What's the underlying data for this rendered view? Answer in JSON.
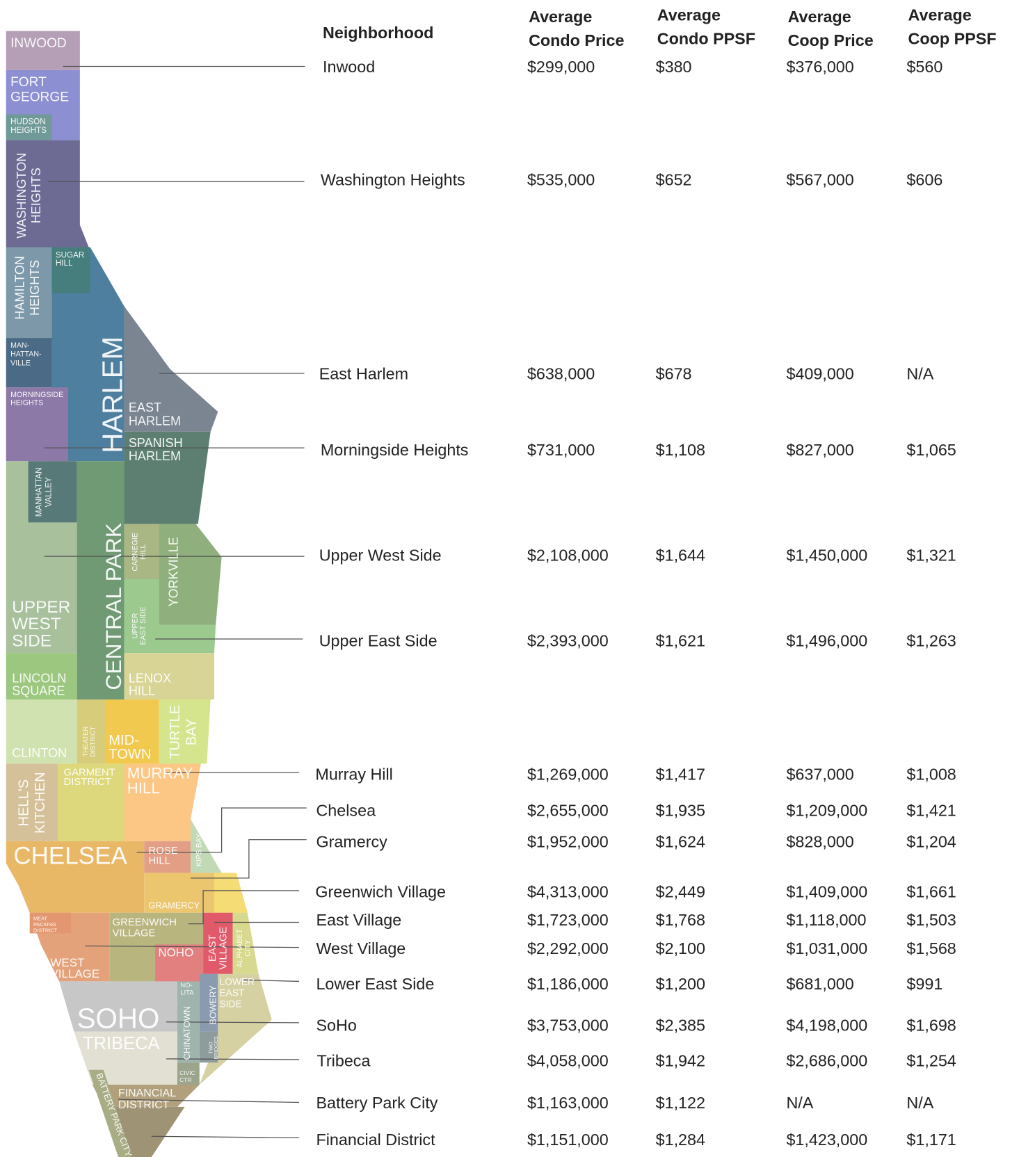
{
  "table": {
    "headers": [
      [
        "Neighborhood"
      ],
      [
        "Average",
        "Condo Price"
      ],
      [
        "Average",
        "Condo PPSF"
      ],
      [
        "Average",
        "Coop Price"
      ],
      [
        "Average",
        "Coop PPSF"
      ]
    ],
    "rows": [
      [
        "Inwood",
        "$299,000",
        "$380",
        "$376,000",
        "$560"
      ],
      [
        "Washington Heights",
        "$535,000",
        "$652",
        "$567,000",
        "$606"
      ],
      [
        "East Harlem",
        "$638,000",
        "$678",
        "$409,000",
        "N/A"
      ],
      [
        "Morningside Heights",
        "$731,000",
        "$1,108",
        "$827,000",
        "$1,065"
      ],
      [
        "Upper West Side",
        "$2,108,000",
        "$1,644",
        "$1,450,000",
        "$1,321"
      ],
      [
        "Upper East Side",
        "$2,393,000",
        "$1,621",
        "$1,496,000",
        "$1,263"
      ],
      [
        "Murray Hill",
        "$1,269,000",
        "$1,417",
        "$637,000",
        "$1,008"
      ],
      [
        "Chelsea",
        "$2,655,000",
        "$1,935",
        "$1,209,000",
        "$1,421"
      ],
      [
        "Gramercy",
        "$1,952,000",
        "$1,624",
        "$828,000",
        "$1,204"
      ],
      [
        "Greenwich Village",
        "$4,313,000",
        "$2,449",
        "$1,409,000",
        "$1,661"
      ],
      [
        "East Village",
        "$1,723,000",
        "$1,768",
        "$1,118,000",
        "$1,503"
      ],
      [
        "West Village",
        "$2,292,000",
        "$2,100",
        "$1,031,000",
        "$1,568"
      ],
      [
        "Lower East Side",
        "$1,186,000",
        "$1,200",
        "$681,000",
        "$991"
      ],
      [
        "SoHo",
        "$3,753,000",
        "$2,385",
        "$4,198,000",
        "$1,698"
      ],
      [
        "Tribeca",
        "$4,058,000",
        "$1,942",
        "$2,686,000",
        "$1,254"
      ],
      [
        "Battery Park City",
        "$1,163,000",
        "$1,122",
        "N/A",
        "N/A"
      ],
      [
        "Financial District",
        "$1,151,000",
        "$1,284",
        "$1,423,000",
        "$1,171"
      ]
    ]
  },
  "map": {
    "labels": [
      [
        "INWOOD"
      ],
      [
        "FORT",
        "GEORGE"
      ],
      [
        "HUDSON",
        "HEIGHTS"
      ],
      [
        "WASHINGTON",
        "HEIGHTS"
      ],
      [
        "SUGAR",
        "HILL"
      ],
      [
        "HAMILTON",
        "HEIGHTS"
      ],
      [
        "MAN-",
        "HATTAN-",
        "VILLE"
      ],
      [
        "MORNINGSIDE",
        "HEIGHTS"
      ],
      [
        "HARLEM"
      ],
      [
        "EAST",
        "HARLEM"
      ],
      [
        "SPANISH",
        "HARLEM"
      ],
      [
        "MANHATTAN",
        "VALLEY"
      ],
      [
        "CENTRAL PARK"
      ],
      [
        "CARNEGIE",
        "HILL"
      ],
      [
        "YORKVILLE"
      ],
      [
        "UPPER",
        "WEST",
        "SIDE"
      ],
      [
        "UPPER",
        "EAST SIDE"
      ],
      [
        "LINCOLN",
        "SQUARE"
      ],
      [
        "LENOX",
        "HILL"
      ],
      [
        "CLINTON"
      ],
      [
        "THEATER",
        "DISTRICT"
      ],
      [
        "MID-",
        "TOWN"
      ],
      [
        "TURTLE",
        "BAY"
      ],
      [
        "HELL'S",
        "KITCHEN"
      ],
      [
        "GARMENT",
        "DISTRICT"
      ],
      [
        "MURRAY",
        "HILL"
      ],
      [
        "CHELSEA"
      ],
      [
        "ROSE",
        "HILL"
      ],
      [
        "KIPS BAY"
      ],
      [
        "GRAMERCY"
      ],
      [
        "MEAT",
        "PACKING",
        "DISTRICT"
      ],
      [
        "GREENWICH",
        "VILLAGE"
      ],
      [
        "WEST",
        "VILLAGE"
      ],
      [
        "NOHO"
      ],
      [
        "EAST",
        "VILLAGE"
      ],
      [
        "ALPHABET",
        "CITY"
      ],
      [
        "NO-",
        "LITA"
      ],
      [
        "LOWER",
        "EAST",
        "SIDE"
      ],
      [
        "SOHO"
      ],
      [
        "TRIBECA"
      ],
      [
        "CHINATOWN"
      ],
      [
        "BOWERY"
      ],
      [
        "TWO",
        "BRIDGES"
      ],
      [
        "CIVIC",
        "CTR"
      ],
      [
        "FINANCIAL",
        "DISTRICT"
      ],
      [
        "BATTERY PARK CITY"
      ]
    ]
  }
}
